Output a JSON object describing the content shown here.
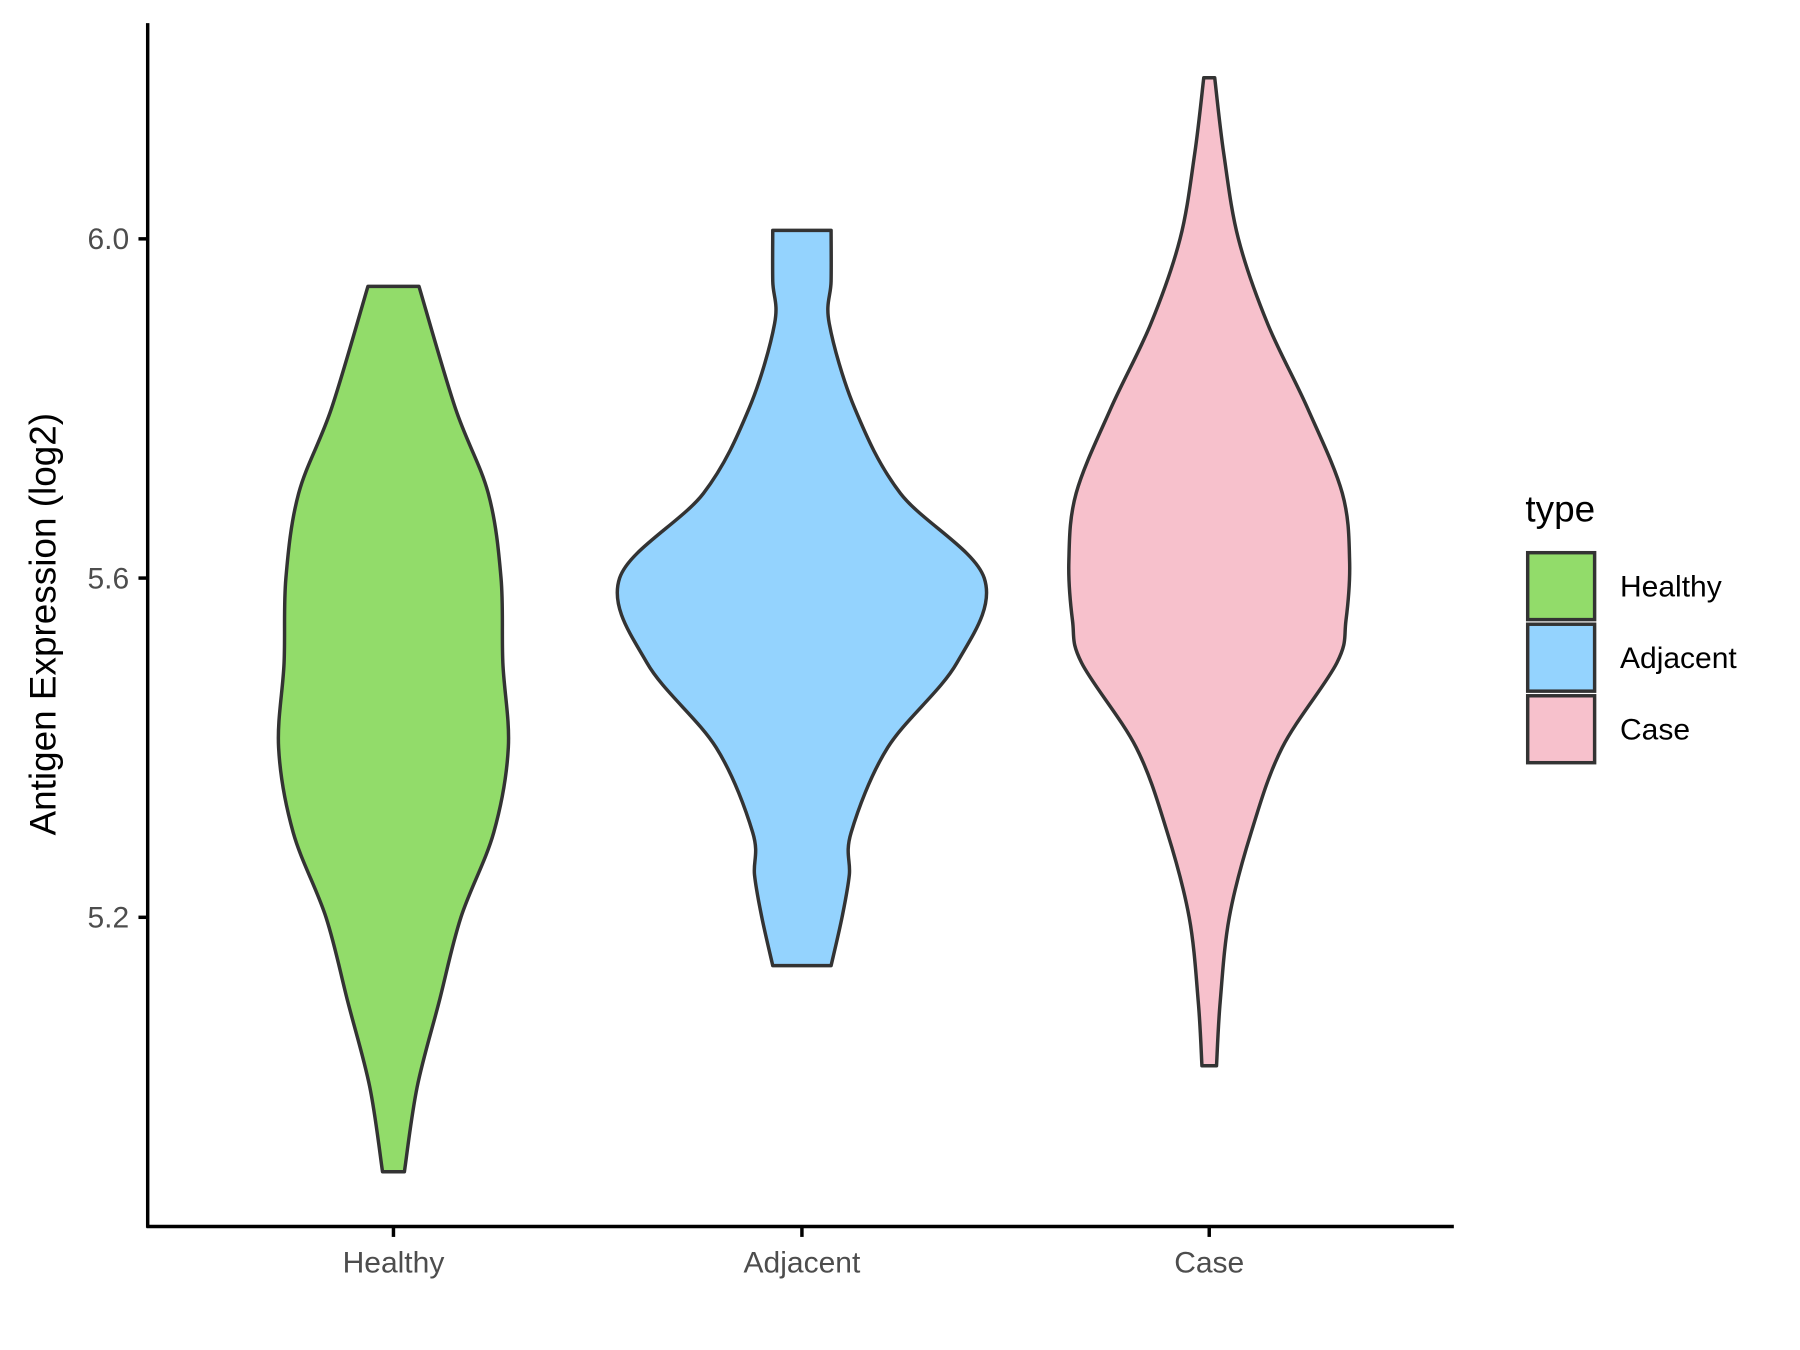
{
  "chart_data": {
    "type": "violin",
    "title": "",
    "xlabel": "",
    "ylabel": "Antigen Expression (log2)",
    "ylim": [
      4.82,
      6.24
    ],
    "yticks": [
      5.2,
      5.6,
      6.0
    ],
    "ytick_labels": [
      "5.2",
      "5.6",
      "6.0"
    ],
    "categories": [
      "Healthy",
      "Adjacent",
      "Case"
    ],
    "legend": {
      "title": "type",
      "placement": "right",
      "entries": [
        "Healthy",
        "Adjacent",
        "Case"
      ]
    },
    "grid": false,
    "series": [
      {
        "name": "Healthy",
        "color": "#92dc6a",
        "min": 4.9,
        "max": 5.944,
        "profile": [
          [
            5.944,
            0.14
          ],
          [
            5.8,
            0.34
          ],
          [
            5.7,
            0.52
          ],
          [
            5.6,
            0.59
          ],
          [
            5.5,
            0.6
          ],
          [
            5.4,
            0.63
          ],
          [
            5.3,
            0.55
          ],
          [
            5.2,
            0.37
          ],
          [
            5.1,
            0.25
          ],
          [
            5.0,
            0.13
          ],
          [
            4.9,
            0.06
          ]
        ]
      },
      {
        "name": "Adjacent",
        "color": "#94d3fe",
        "min": 5.143,
        "max": 6.01,
        "profile": [
          [
            6.01,
            0.16
          ],
          [
            5.95,
            0.16
          ],
          [
            5.9,
            0.15
          ],
          [
            5.8,
            0.29
          ],
          [
            5.7,
            0.54
          ],
          [
            5.6,
            1.0
          ],
          [
            5.5,
            0.85
          ],
          [
            5.4,
            0.47
          ],
          [
            5.3,
            0.27
          ],
          [
            5.25,
            0.26
          ],
          [
            5.2,
            0.22
          ],
          [
            5.143,
            0.16
          ]
        ]
      },
      {
        "name": "Case",
        "color": "#f7c1cc",
        "min": 5.025,
        "max": 6.19,
        "profile": [
          [
            6.19,
            0.03
          ],
          [
            6.1,
            0.08
          ],
          [
            6.0,
            0.16
          ],
          [
            5.9,
            0.32
          ],
          [
            5.8,
            0.54
          ],
          [
            5.7,
            0.73
          ],
          [
            5.62,
            0.77
          ],
          [
            5.55,
            0.75
          ],
          [
            5.5,
            0.7
          ],
          [
            5.4,
            0.4
          ],
          [
            5.3,
            0.23
          ],
          [
            5.2,
            0.11
          ],
          [
            5.1,
            0.06
          ],
          [
            5.025,
            0.04
          ]
        ]
      }
    ]
  }
}
